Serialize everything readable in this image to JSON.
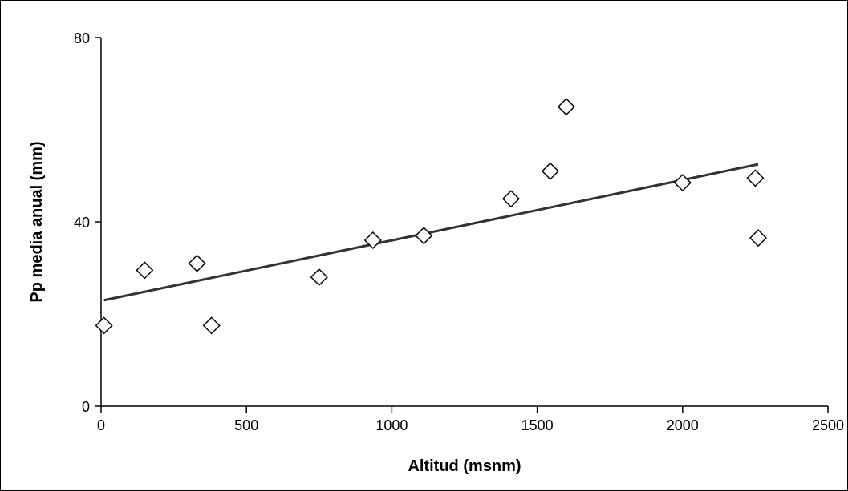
{
  "chart_data": {
    "type": "scatter",
    "xlabel": "Altitud (msnm)",
    "ylabel": "Pp media anual (mm)",
    "xlim": [
      0,
      2500
    ],
    "ylim": [
      0,
      80
    ],
    "x_ticks": [
      0,
      500,
      1000,
      1500,
      2000,
      2500
    ],
    "y_ticks": [
      0,
      40,
      80
    ],
    "grid": false,
    "legend": "none",
    "marker": "diamond-open",
    "series": [
      {
        "points": [
          {
            "x": 10,
            "y": 17.5
          },
          {
            "x": 150,
            "y": 29.5
          },
          {
            "x": 330,
            "y": 31
          },
          {
            "x": 380,
            "y": 17.5
          },
          {
            "x": 750,
            "y": 28
          },
          {
            "x": 935,
            "y": 36
          },
          {
            "x": 1110,
            "y": 37
          },
          {
            "x": 1410,
            "y": 45
          },
          {
            "x": 1545,
            "y": 51
          },
          {
            "x": 1600,
            "y": 65
          },
          {
            "x": 2000,
            "y": 48.5
          },
          {
            "x": 2250,
            "y": 49.5
          },
          {
            "x": 2260,
            "y": 36.5
          }
        ]
      }
    ],
    "trendline": {
      "type": "linear",
      "x": [
        10,
        2260
      ],
      "y": [
        23,
        52.5
      ]
    },
    "colors": {
      "marker_stroke": "#000000",
      "trendline": "#333333"
    }
  }
}
